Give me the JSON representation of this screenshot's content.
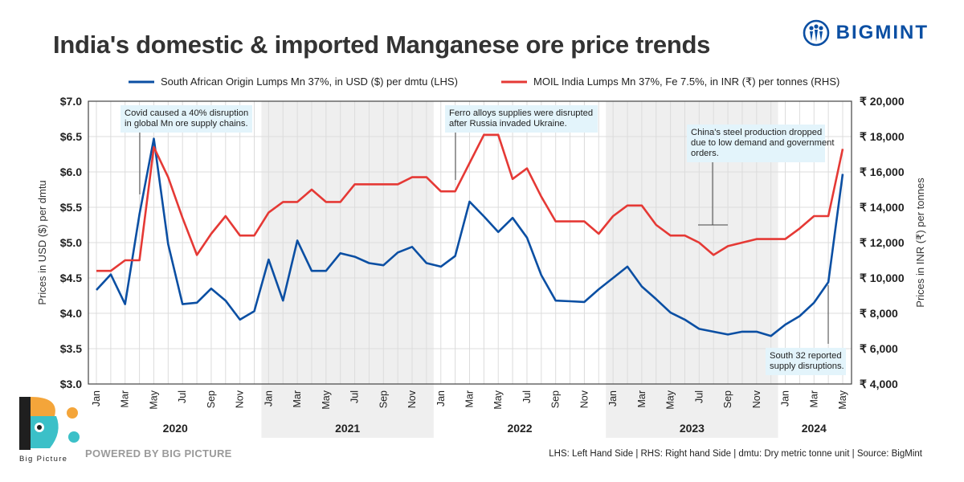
{
  "title": "India's domestic & imported Manganese ore price trends",
  "brand": {
    "name": "BIGMINT",
    "color": "#0b4fa3"
  },
  "footer": {
    "powered_by": "POWERED BY BIG PICTURE",
    "notes": "LHS: Left Hand Side | RHS: Right hand Side | dmtu: Dry metric tonne unit | Source: BigMint",
    "big_picture_label": "Big Picture"
  },
  "chart_data": {
    "type": "line",
    "title": "India's domestic & imported Manganese ore price trends",
    "x_month_labels": [
      "Jan",
      "",
      "Mar",
      "",
      "May",
      "",
      "Jul",
      "",
      "Sep",
      "",
      "Nov",
      "",
      "Jan",
      "",
      "Mar",
      "",
      "May",
      "",
      "Jul",
      "",
      "Sep",
      "",
      "Nov",
      "",
      "Jan",
      "",
      "Mar",
      "",
      "May",
      "",
      "Jul",
      "",
      "Sep",
      "",
      "Nov",
      "",
      "Jan",
      "",
      "Mar",
      "",
      "May",
      "",
      "Jul",
      "",
      "Sep",
      "",
      "Nov",
      "",
      "Jan",
      "",
      "Mar",
      "",
      "May"
    ],
    "years": [
      {
        "label": "2020",
        "start": 0,
        "end": 11,
        "shaded": false
      },
      {
        "label": "2021",
        "start": 12,
        "end": 23,
        "shaded": true
      },
      {
        "label": "2022",
        "start": 24,
        "end": 35,
        "shaded": false
      },
      {
        "label": "2023",
        "start": 36,
        "end": 47,
        "shaded": true
      },
      {
        "label": "2024",
        "start": 48,
        "end": 52,
        "shaded": false
      }
    ],
    "series": [
      {
        "name": "South African Origin Lumps Mn 37%, in USD ($) per dmtu (LHS)",
        "axis": "left",
        "color": "#0b4fa3",
        "values": [
          4.33,
          4.55,
          4.13,
          5.4,
          6.47,
          4.98,
          4.13,
          4.15,
          4.35,
          4.18,
          3.91,
          4.03,
          4.76,
          4.18,
          5.03,
          4.6,
          4.6,
          4.85,
          4.8,
          4.71,
          4.68,
          4.86,
          4.94,
          4.71,
          4.66,
          4.81,
          5.58,
          5.37,
          5.15,
          5.35,
          5.07,
          4.54,
          4.18,
          4.17,
          4.16,
          4.34,
          4.5,
          4.66,
          4.38,
          4.2,
          4.01,
          3.91,
          3.78,
          3.74,
          3.7,
          3.74,
          3.74,
          3.68,
          3.84,
          3.96,
          4.15,
          4.44,
          5.97
        ]
      },
      {
        "name": "MOIL India Lumps Mn 37%, Fe 7.5%, in INR (₹) per tonnes (RHS)",
        "axis": "right",
        "color": "#e53935",
        "values": [
          10400,
          10400,
          11000,
          11000,
          17400,
          15700,
          13400,
          11300,
          12500,
          13500,
          12400,
          12400,
          13700,
          14300,
          14300,
          15000,
          14300,
          14300,
          15300,
          15300,
          15300,
          15300,
          15700,
          15700,
          14900,
          14900,
          16500,
          18100,
          18100,
          15600,
          16200,
          14600,
          13200,
          13200,
          13200,
          12500,
          13500,
          14100,
          14100,
          13000,
          12400,
          12400,
          12000,
          11300,
          11800,
          12000,
          12200,
          12200,
          12200,
          12800,
          13500,
          13500,
          17300
        ]
      }
    ],
    "left_axis": {
      "label": "Prices in USD ($) per dmtu",
      "min": 3.0,
      "max": 7.0,
      "ticks": [
        "$3.0",
        "$3.5",
        "$4.0",
        "$4.5",
        "$5.0",
        "$5.5",
        "$6.0",
        "$6.5",
        "$7.0"
      ]
    },
    "right_axis": {
      "label": "Prices in INR (₹) per tonnes",
      "min": 4000,
      "max": 20000,
      "ticks": [
        "₹ 4,000",
        "₹ 6,000",
        "₹ 8,000",
        "₹ 10,000",
        "₹ 12,000",
        "₹ 14,000",
        "₹ 16,000",
        "₹ 18,000",
        "₹ 20,000"
      ]
    },
    "annotations": [
      {
        "text": "Covid caused a 40% disruption in global Mn ore supply chains.",
        "lines": [
          "Covid caused a 40% disruption",
          "in global Mn ore supply chains."
        ]
      },
      {
        "text": "Ferro alloys supplies were disrupted after Russia invaded Ukraine.",
        "lines": [
          "Ferro alloys supplies were disrupted",
          "after Russia invaded Ukraine."
        ]
      },
      {
        "text": "China's steel production dropped due to low demand and government orders.",
        "lines": [
          "China's steel production dropped",
          "due to low demand and government",
          "orders."
        ]
      },
      {
        "text": "South 32 reported supply disruptions.",
        "lines": [
          "South 32 reported",
          "supply disruptions."
        ]
      }
    ],
    "legend_position": "top"
  }
}
